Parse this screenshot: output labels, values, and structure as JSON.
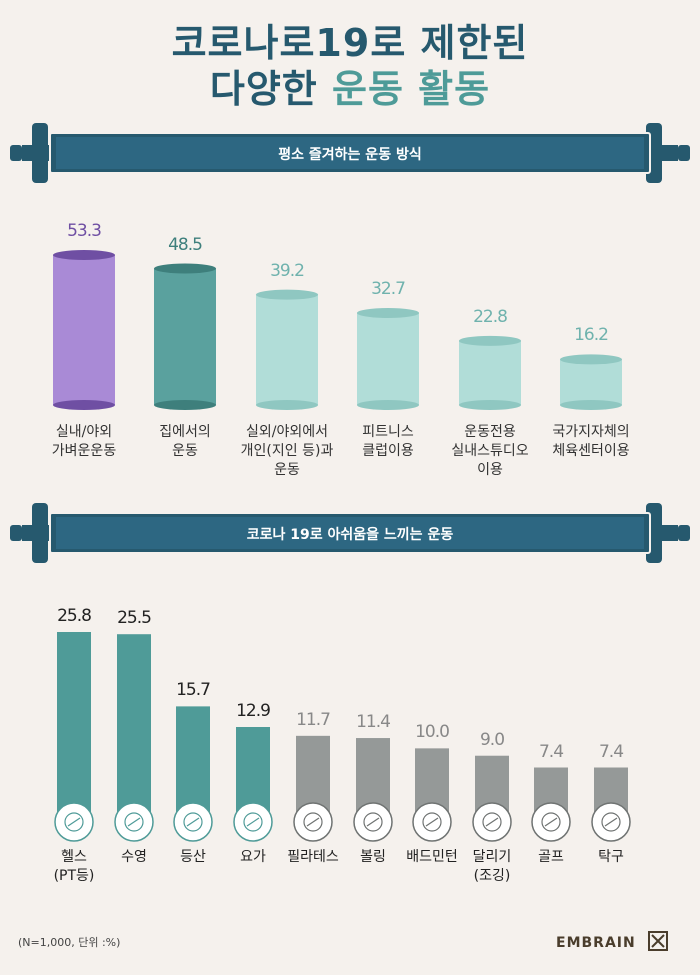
{
  "title": {
    "line1": "코로나로19로 제한된",
    "line2_part1": "다양한",
    "line2_part2": "운동 활동"
  },
  "colors": {
    "navy": "#26596e",
    "purple": "#a98ad6",
    "teal_dark": "#5aa19e",
    "teal_light": "#b1ddd8",
    "teal_bar": "#4f9b98",
    "gray_bar": "#959998"
  },
  "chart_data": [
    {
      "type": "bar",
      "title": "평소 즐겨하는 운동 방식",
      "categories": [
        [
          "실내/야외",
          "가벼운운동"
        ],
        [
          "집에서의",
          "운동"
        ],
        [
          "실외/야외에서",
          "개인(지인 등)과",
          "운동"
        ],
        [
          "피트니스",
          "클럽이용"
        ],
        [
          "운동전용",
          "실내스튜디오",
          "이용"
        ],
        [
          "국가지자체의",
          "체육센터이용"
        ]
      ],
      "values": [
        53.3,
        48.5,
        39.2,
        32.7,
        22.8,
        16.2
      ],
      "value_labels": [
        "53.3",
        "48.5",
        "39.2",
        "32.7",
        "22.8",
        "16.2"
      ],
      "ylim": [
        0,
        60
      ]
    },
    {
      "type": "bar",
      "title": "코로나 19로 아쉬움을 느끼는 운동",
      "categories": [
        [
          "헬스",
          "(PT등)"
        ],
        [
          "수영"
        ],
        [
          "등산"
        ],
        [
          "요가"
        ],
        [
          "필라테스"
        ],
        [
          "볼링"
        ],
        [
          "배드민턴"
        ],
        [
          "달리기",
          "(조깅)"
        ],
        [
          "골프"
        ],
        [
          "탁구"
        ]
      ],
      "values": [
        25.8,
        25.5,
        15.7,
        12.9,
        11.7,
        11.4,
        10.0,
        9.0,
        7.4,
        7.4
      ],
      "value_labels": [
        "25.8",
        "25.5",
        "15.7",
        "12.9",
        "11.7",
        "11.4",
        "10.0",
        "9.0",
        "7.4",
        "7.4"
      ],
      "icons": [
        "dumbbell-icon",
        "swim-icon",
        "mountain-icon",
        "yoga-mat-icon",
        "pilates-icon",
        "bowling-icon",
        "shuttlecock-icon",
        "runner-icon",
        "golf-ball-icon",
        "ping-pong-icon"
      ],
      "ylim": [
        0,
        30
      ]
    }
  ],
  "footnote": "(N=1,000, 단위 :%)",
  "brand": "EMBRAIN"
}
